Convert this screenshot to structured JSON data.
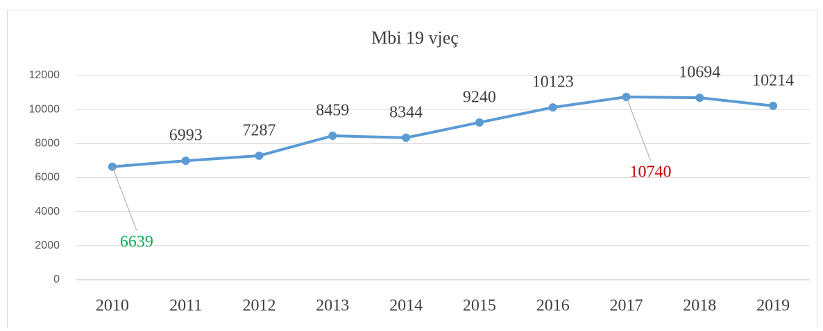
{
  "chart_data": {
    "type": "line",
    "title": "Mbi 19 vjeç",
    "categories": [
      "2010",
      "2011",
      "2012",
      "2013",
      "2014",
      "2015",
      "2016",
      "2017",
      "2018",
      "2019"
    ],
    "series": [
      {
        "name": "Mbi 19 vjeç",
        "color": "#5b9bd5",
        "values": [
          6639,
          6993,
          7287,
          8459,
          8344,
          9240,
          10123,
          10740,
          10694,
          10214
        ]
      }
    ],
    "label_colors": [
      "#00b050",
      "#404040",
      "#404040",
      "#404040",
      "#404040",
      "#404040",
      "#404040",
      "#c00000",
      "#404040",
      "#404040"
    ],
    "ylim": [
      0,
      12000
    ],
    "yticks": [
      0,
      2000,
      4000,
      6000,
      8000,
      10000,
      12000
    ],
    "grid": true
  }
}
